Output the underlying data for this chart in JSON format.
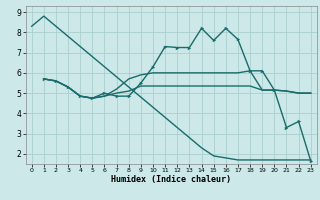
{
  "xlabel": "Humidex (Indice chaleur)",
  "bg_color": "#cce8e8",
  "line_color": "#1a6b6b",
  "grid_color": "#aacfcf",
  "xlim": [
    -0.5,
    23.5
  ],
  "ylim": [
    1.5,
    9.3
  ],
  "yticks": [
    2,
    3,
    4,
    5,
    6,
    7,
    8,
    9
  ],
  "xticks": [
    0,
    1,
    2,
    3,
    4,
    5,
    6,
    7,
    8,
    9,
    10,
    11,
    12,
    13,
    14,
    15,
    16,
    17,
    18,
    19,
    20,
    21,
    22,
    23
  ],
  "line1_x": [
    0,
    1,
    2,
    3,
    4,
    5,
    6,
    7,
    8,
    9,
    10,
    11,
    12,
    13,
    14,
    15,
    16,
    17,
    18,
    19,
    20,
    21,
    22,
    23
  ],
  "line1_y": [
    8.3,
    8.8,
    8.3,
    7.8,
    7.3,
    6.8,
    6.3,
    5.8,
    5.3,
    4.8,
    4.3,
    3.8,
    3.3,
    2.8,
    2.3,
    1.9,
    1.8,
    1.7,
    1.7,
    1.7,
    1.7,
    1.7,
    1.7,
    1.7
  ],
  "line2_x": [
    1,
    2,
    3,
    4,
    5,
    6,
    7,
    8,
    9,
    10,
    11,
    12,
    13,
    14,
    15,
    16,
    17,
    18,
    19,
    20,
    21,
    22,
    23
  ],
  "line2_y": [
    5.7,
    5.6,
    5.3,
    4.85,
    4.75,
    5.0,
    4.85,
    4.85,
    5.5,
    6.3,
    7.3,
    7.25,
    7.25,
    8.2,
    7.6,
    8.2,
    7.65,
    6.1,
    6.1,
    5.15,
    3.3,
    3.6,
    1.65
  ],
  "line3_x": [
    1,
    2,
    3,
    4,
    5,
    6,
    7,
    8,
    9,
    10,
    11,
    12,
    13,
    14,
    15,
    16,
    17,
    18,
    19,
    20,
    21,
    22,
    23
  ],
  "line3_y": [
    5.7,
    5.6,
    5.3,
    4.85,
    4.75,
    4.85,
    5.2,
    5.7,
    5.9,
    6.0,
    6.0,
    6.0,
    6.0,
    6.0,
    6.0,
    6.0,
    6.0,
    6.1,
    5.15,
    5.15,
    5.1,
    5.0,
    5.0
  ],
  "line4_x": [
    1,
    2,
    3,
    4,
    5,
    6,
    7,
    8,
    9,
    10,
    11,
    12,
    13,
    14,
    15,
    16,
    17,
    18,
    19,
    20,
    21,
    22,
    23
  ],
  "line4_y": [
    5.7,
    5.6,
    5.3,
    4.85,
    4.75,
    4.85,
    5.0,
    5.1,
    5.35,
    5.35,
    5.35,
    5.35,
    5.35,
    5.35,
    5.35,
    5.35,
    5.35,
    5.35,
    5.15,
    5.15,
    5.1,
    5.0,
    5.0
  ]
}
